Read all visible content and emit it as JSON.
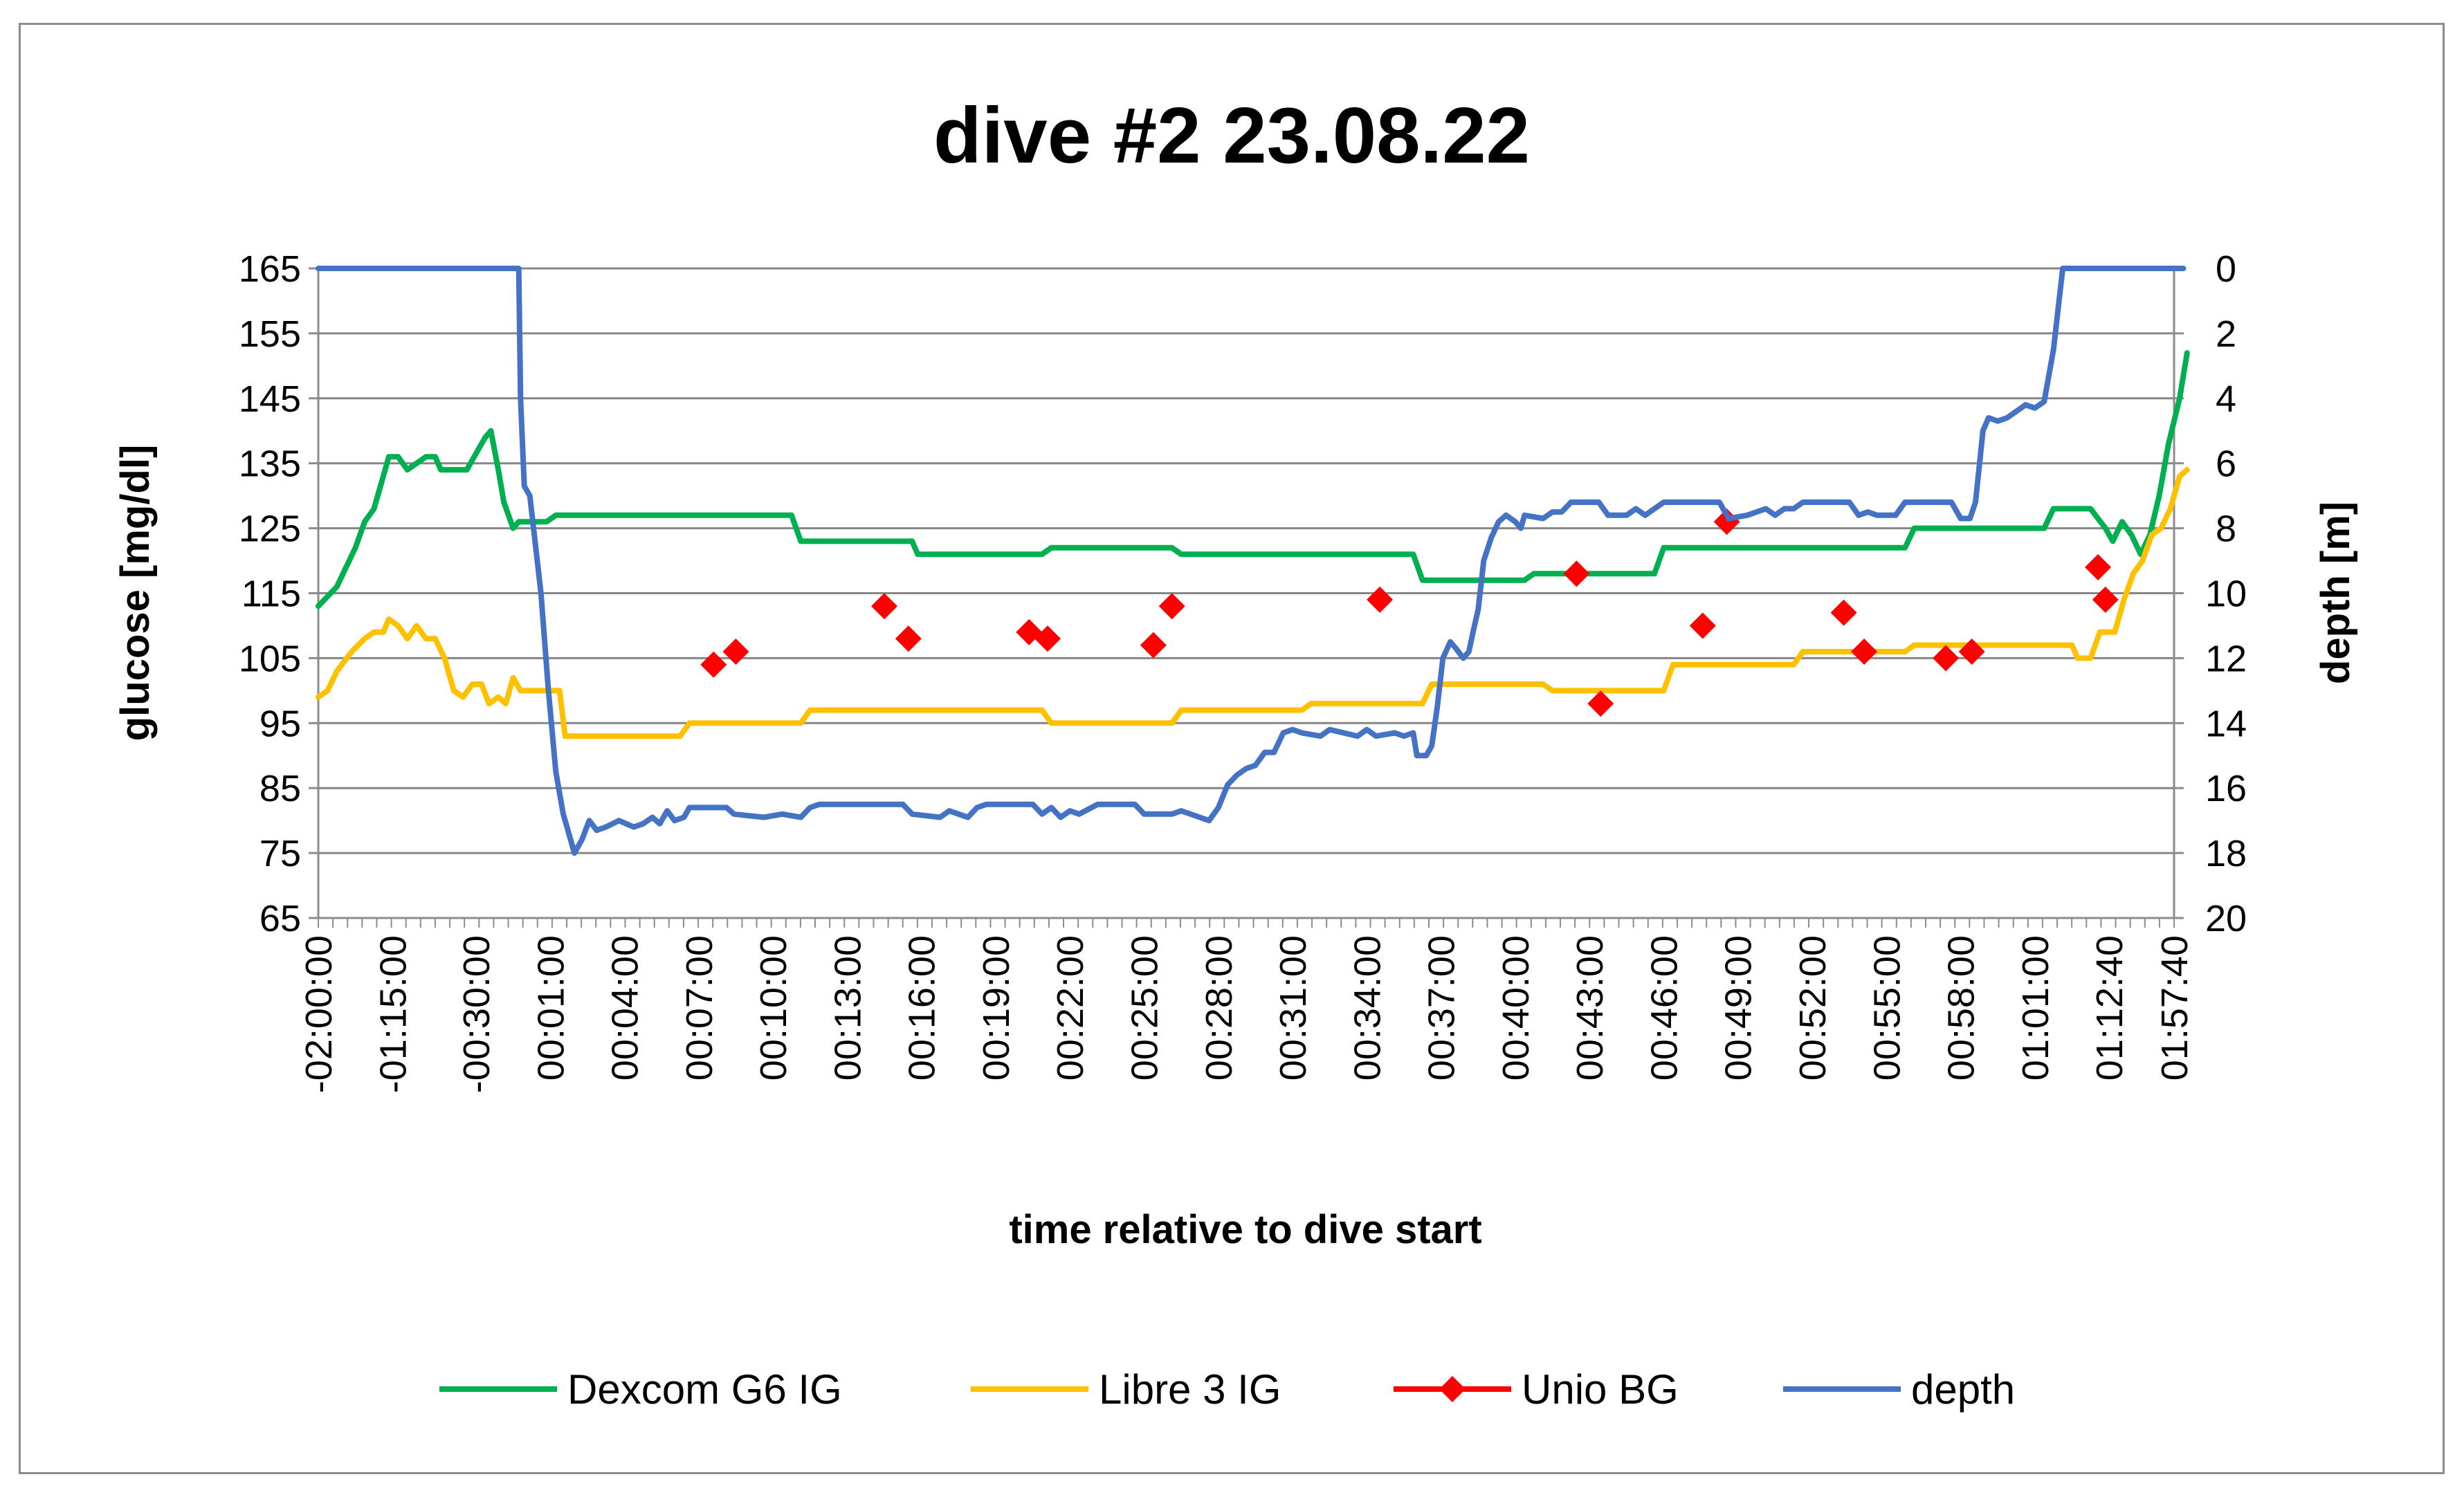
{
  "chart_data": {
    "type": "line",
    "title": "dive #2 23.08.22",
    "xlabel": "time relative to dive start",
    "ylabel_left": "glucose [mg/dl]",
    "ylabel_right": "depth [m]",
    "ylim_left": [
      65,
      165
    ],
    "ylim_right": [
      0,
      20
    ],
    "yticks_left": [
      "165",
      "155",
      "145",
      "135",
      "125",
      "115",
      "105",
      "95",
      "85",
      "75",
      "65"
    ],
    "yticks_right": [
      "0",
      "2",
      "4",
      "6",
      "8",
      "10",
      "12",
      "14",
      "16",
      "18",
      "20"
    ],
    "x_range": [
      0,
      100
    ],
    "x_ticks": [
      {
        "x": 0,
        "label": "-02:00:00"
      },
      {
        "x": 4,
        "label": "-01:15:00"
      },
      {
        "x": 8.5,
        "label": "-00:30:00"
      },
      {
        "x": 12.5,
        "label": "00:01:00"
      },
      {
        "x": 16.5,
        "label": "00:04:00"
      },
      {
        "x": 20.5,
        "label": "00:07:00"
      },
      {
        "x": 24.5,
        "label": "00:10:00"
      },
      {
        "x": 28.5,
        "label": "00:13:00"
      },
      {
        "x": 32.5,
        "label": "00:16:00"
      },
      {
        "x": 36.5,
        "label": "00:19:00"
      },
      {
        "x": 40.5,
        "label": "00:22:00"
      },
      {
        "x": 44.5,
        "label": "00:25:00"
      },
      {
        "x": 48.5,
        "label": "00:28:00"
      },
      {
        "x": 52.5,
        "label": "00:31:00"
      },
      {
        "x": 56.5,
        "label": "00:34:00"
      },
      {
        "x": 60.5,
        "label": "00:37:00"
      },
      {
        "x": 64.5,
        "label": "00:40:00"
      },
      {
        "x": 68.5,
        "label": "00:43:00"
      },
      {
        "x": 72.5,
        "label": "00:46:00"
      },
      {
        "x": 76.5,
        "label": "00:49:00"
      },
      {
        "x": 80.5,
        "label": "00:52:00"
      },
      {
        "x": 84.5,
        "label": "00:55:00"
      },
      {
        "x": 88.5,
        "label": "00:58:00"
      },
      {
        "x": 92.5,
        "label": "01:01:00"
      },
      {
        "x": 96.5,
        "label": "01:12:40"
      },
      {
        "x": 100,
        "label": "01:57:40"
      }
    ],
    "legend_position": "bottom",
    "series": [
      {
        "name": "Dexcom G6 IG",
        "axis": "left",
        "color": "#00b050",
        "marker": "none",
        "points": [
          [
            0,
            113
          ],
          [
            1,
            116
          ],
          [
            2,
            122
          ],
          [
            2.5,
            126
          ],
          [
            3,
            128
          ],
          [
            3.5,
            133
          ],
          [
            3.8,
            136
          ],
          [
            4.3,
            136
          ],
          [
            4.8,
            134
          ],
          [
            5.3,
            135
          ],
          [
            5.8,
            136
          ],
          [
            6.3,
            136
          ],
          [
            6.6,
            134
          ],
          [
            7.5,
            134
          ],
          [
            8,
            134
          ],
          [
            8.4,
            136
          ],
          [
            8.8,
            138
          ],
          [
            9,
            139
          ],
          [
            9.3,
            140
          ],
          [
            9.7,
            134
          ],
          [
            10,
            129
          ],
          [
            10.5,
            125
          ],
          [
            10.8,
            126
          ],
          [
            12,
            126
          ],
          [
            12.3,
            126
          ],
          [
            12.8,
            127
          ],
          [
            25.5,
            127
          ],
          [
            26,
            123
          ],
          [
            32,
            123
          ],
          [
            32.3,
            121
          ],
          [
            39,
            121
          ],
          [
            39.5,
            122
          ],
          [
            46,
            122
          ],
          [
            46.5,
            121
          ],
          [
            59,
            121
          ],
          [
            59.5,
            117
          ],
          [
            65,
            117
          ],
          [
            65.5,
            118
          ],
          [
            72,
            118
          ],
          [
            72.5,
            122
          ],
          [
            85.5,
            122
          ],
          [
            86,
            125
          ],
          [
            93,
            125
          ],
          [
            93.5,
            128
          ],
          [
            95.5,
            128
          ],
          [
            96.3,
            125
          ],
          [
            96.7,
            123
          ],
          [
            97.2,
            126
          ],
          [
            97.7,
            124
          ],
          [
            98.2,
            121
          ],
          [
            98.7,
            124
          ],
          [
            99.2,
            130
          ],
          [
            99.7,
            138
          ],
          [
            100.3,
            145
          ],
          [
            100.7,
            152
          ]
        ]
      },
      {
        "name": "Libre 3 IG",
        "axis": "left",
        "color": "#ffc000",
        "marker": "none",
        "points": [
          [
            0,
            99
          ],
          [
            0.5,
            100
          ],
          [
            1,
            103
          ],
          [
            1.8,
            106
          ],
          [
            2.5,
            108
          ],
          [
            3,
            109
          ],
          [
            3.5,
            109
          ],
          [
            3.8,
            111
          ],
          [
            4.3,
            110
          ],
          [
            4.8,
            108
          ],
          [
            5.3,
            110
          ],
          [
            5.8,
            108
          ],
          [
            6.3,
            108
          ],
          [
            6.8,
            105
          ],
          [
            7.3,
            100
          ],
          [
            7.8,
            99
          ],
          [
            8.3,
            101
          ],
          [
            8.8,
            101
          ],
          [
            9.2,
            98
          ],
          [
            9.7,
            99
          ],
          [
            10.1,
            98
          ],
          [
            10.5,
            102
          ],
          [
            10.9,
            100
          ],
          [
            12.5,
            100
          ],
          [
            13,
            100
          ],
          [
            13.3,
            93
          ],
          [
            19.5,
            93
          ],
          [
            20,
            95
          ],
          [
            26,
            95
          ],
          [
            26.5,
            97
          ],
          [
            39,
            97
          ],
          [
            39.5,
            95
          ],
          [
            46,
            95
          ],
          [
            46.5,
            97
          ],
          [
            53,
            97
          ],
          [
            53.5,
            98
          ],
          [
            59.5,
            98
          ],
          [
            60,
            101
          ],
          [
            66,
            101
          ],
          [
            66.5,
            100
          ],
          [
            72.5,
            100
          ],
          [
            73,
            104
          ],
          [
            79.5,
            104
          ],
          [
            80,
            106
          ],
          [
            85.5,
            106
          ],
          [
            86,
            107
          ],
          [
            94.5,
            107
          ],
          [
            94.8,
            105
          ],
          [
            95.5,
            105
          ],
          [
            96,
            109
          ],
          [
            96.8,
            109
          ],
          [
            97.3,
            114
          ],
          [
            97.8,
            118
          ],
          [
            98.3,
            120
          ],
          [
            98.8,
            124
          ],
          [
            99.3,
            125
          ],
          [
            99.8,
            128
          ],
          [
            100.3,
            133
          ],
          [
            100.7,
            134
          ]
        ]
      },
      {
        "name": "Unio BG",
        "axis": "left",
        "color": "#ff0000",
        "marker": "diamond",
        "line": false,
        "points": [
          [
            21.3,
            104
          ],
          [
            22.5,
            106
          ],
          [
            30.5,
            113
          ],
          [
            31.8,
            108
          ],
          [
            38.3,
            109
          ],
          [
            39.3,
            108
          ],
          [
            45,
            107
          ],
          [
            46,
            113
          ],
          [
            57.2,
            114
          ],
          [
            67.8,
            118
          ],
          [
            69.1,
            98
          ],
          [
            74.6,
            110
          ],
          [
            75.9,
            126
          ],
          [
            82.2,
            112
          ],
          [
            83.3,
            106
          ],
          [
            87.7,
            105
          ],
          [
            89.1,
            106
          ],
          [
            95.9,
            119
          ],
          [
            96.3,
            114
          ]
        ]
      },
      {
        "name": "depth",
        "axis": "right",
        "color": "#4472c4",
        "marker": "none",
        "points": [
          [
            0,
            0
          ],
          [
            10.8,
            0
          ],
          [
            10.9,
            4
          ],
          [
            11.1,
            6.7
          ],
          [
            11.4,
            7
          ],
          [
            11.6,
            8
          ],
          [
            12,
            10
          ],
          [
            12.4,
            13
          ],
          [
            12.8,
            15.5
          ],
          [
            13.2,
            16.8
          ],
          [
            13.5,
            17.4
          ],
          [
            13.8,
            18
          ],
          [
            14.2,
            17.6
          ],
          [
            14.6,
            17
          ],
          [
            15,
            17.3
          ],
          [
            15.5,
            17.2
          ],
          [
            16.2,
            17
          ],
          [
            17,
            17.2
          ],
          [
            17.5,
            17.1
          ],
          [
            18,
            16.9
          ],
          [
            18.4,
            17.1
          ],
          [
            18.8,
            16.7
          ],
          [
            19.2,
            17.0
          ],
          [
            19.7,
            16.9
          ],
          [
            20,
            16.6
          ],
          [
            22,
            16.6
          ],
          [
            22.4,
            16.8
          ],
          [
            24,
            16.9
          ],
          [
            25,
            16.8
          ],
          [
            26,
            16.9
          ],
          [
            26.5,
            16.6
          ],
          [
            27,
            16.5
          ],
          [
            31.5,
            16.5
          ],
          [
            32,
            16.8
          ],
          [
            33.5,
            16.9
          ],
          [
            34,
            16.7
          ],
          [
            34.5,
            16.8
          ],
          [
            35,
            16.9
          ],
          [
            35.5,
            16.6
          ],
          [
            36,
            16.5
          ],
          [
            38.5,
            16.5
          ],
          [
            39,
            16.8
          ],
          [
            39.5,
            16.6
          ],
          [
            40,
            16.9
          ],
          [
            40.5,
            16.7
          ],
          [
            41,
            16.8
          ],
          [
            42,
            16.5
          ],
          [
            44,
            16.5
          ],
          [
            44.5,
            16.8
          ],
          [
            46,
            16.8
          ],
          [
            46.5,
            16.7
          ],
          [
            47.5,
            16.9
          ],
          [
            48,
            17
          ],
          [
            48.5,
            16.6
          ],
          [
            49,
            15.9
          ],
          [
            49.5,
            15.6
          ],
          [
            50,
            15.4
          ],
          [
            50.5,
            15.3
          ],
          [
            51,
            14.9
          ],
          [
            51.5,
            14.9
          ],
          [
            52,
            14.3
          ],
          [
            52.5,
            14.2
          ],
          [
            53,
            14.3
          ],
          [
            54,
            14.4
          ],
          [
            54.5,
            14.2
          ],
          [
            56,
            14.4
          ],
          [
            56.5,
            14.2
          ],
          [
            57,
            14.4
          ],
          [
            58,
            14.3
          ],
          [
            58.5,
            14.4
          ],
          [
            59,
            14.3
          ],
          [
            59.2,
            15
          ],
          [
            59.7,
            15
          ],
          [
            60,
            14.7
          ],
          [
            60.3,
            13.5
          ],
          [
            60.6,
            12
          ],
          [
            61,
            11.5
          ],
          [
            61.3,
            11.7
          ],
          [
            61.7,
            12
          ],
          [
            62,
            11.8
          ],
          [
            62.3,
            11
          ],
          [
            62.5,
            10.5
          ],
          [
            62.8,
            9
          ],
          [
            63.2,
            8.3
          ],
          [
            63.6,
            7.8
          ],
          [
            64,
            7.6
          ],
          [
            64.5,
            7.8
          ],
          [
            64.8,
            8
          ],
          [
            65,
            7.6
          ],
          [
            66,
            7.7
          ],
          [
            66.5,
            7.5
          ],
          [
            67,
            7.5
          ],
          [
            67.5,
            7.2
          ],
          [
            69,
            7.2
          ],
          [
            69.5,
            7.6
          ],
          [
            70.5,
            7.6
          ],
          [
            71,
            7.4
          ],
          [
            71.5,
            7.6
          ],
          [
            72,
            7.4
          ],
          [
            72.5,
            7.2
          ],
          [
            75.5,
            7.2
          ],
          [
            76,
            7.7
          ],
          [
            77,
            7.6
          ],
          [
            77.5,
            7.5
          ],
          [
            78,
            7.4
          ],
          [
            78.5,
            7.6
          ],
          [
            79,
            7.4
          ],
          [
            79.5,
            7.4
          ],
          [
            80,
            7.2
          ],
          [
            82.5,
            7.2
          ],
          [
            83,
            7.6
          ],
          [
            83.5,
            7.5
          ],
          [
            84,
            7.6
          ],
          [
            85,
            7.6
          ],
          [
            85.5,
            7.2
          ],
          [
            88,
            7.2
          ],
          [
            88.5,
            7.7
          ],
          [
            89,
            7.7
          ],
          [
            89.3,
            7.2
          ],
          [
            89.7,
            5
          ],
          [
            90,
            4.6
          ],
          [
            90.5,
            4.7
          ],
          [
            91,
            4.6
          ],
          [
            91.5,
            4.4
          ],
          [
            92,
            4.2
          ],
          [
            92.5,
            4.3
          ],
          [
            93,
            4.1
          ],
          [
            93.5,
            2.5
          ],
          [
            94,
            0
          ],
          [
            100.5,
            0
          ]
        ]
      }
    ]
  }
}
